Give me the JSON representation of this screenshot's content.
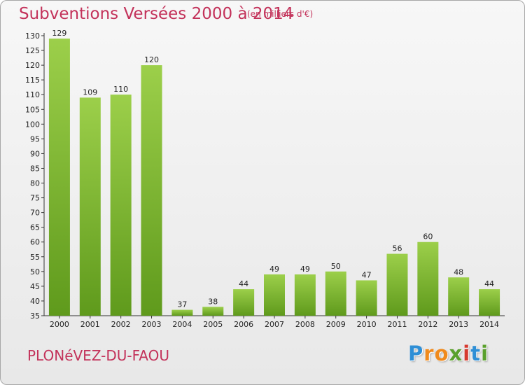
{
  "chart_data": {
    "type": "bar",
    "title": "Subventions Versées 2000 à 2014",
    "subtitle": "(en milliers d'€)",
    "place": "PLONéVEZ-DU-FAOU",
    "categories": [
      "2000",
      "2001",
      "2002",
      "2003",
      "2004",
      "2005",
      "2006",
      "2007",
      "2008",
      "2009",
      "2010",
      "2011",
      "2012",
      "2013",
      "2014"
    ],
    "values": [
      129,
      109,
      110,
      120,
      37,
      38,
      44,
      49,
      49,
      50,
      47,
      56,
      60,
      48,
      44
    ],
    "ylim": [
      35,
      130
    ],
    "yticks": [
      35,
      40,
      45,
      50,
      55,
      60,
      65,
      70,
      75,
      80,
      85,
      90,
      95,
      100,
      105,
      110,
      115,
      120,
      125,
      130
    ],
    "grid": false,
    "colors": {
      "bar_light": "#9ccf4a",
      "bar_dark": "#5f9a1c",
      "text_accent": "#c3325a"
    }
  },
  "logo": {
    "letters": [
      "P",
      "r",
      "o",
      "x",
      "i",
      "t",
      "i"
    ],
    "colors": [
      "#2f8fd6",
      "#f08a1c",
      "#f08a1c",
      "#5aa02c",
      "#d63a2f",
      "#2f8fd6",
      "#5aa02c"
    ]
  }
}
